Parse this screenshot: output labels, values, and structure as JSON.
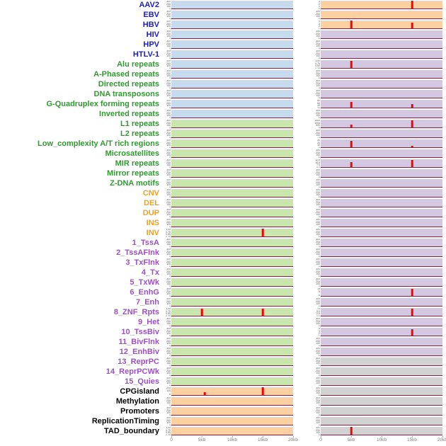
{
  "colors": {
    "label_virus": "#1a1ace",
    "label_repeat": "#2e9b2e",
    "label_sv": "#f0a122",
    "label_chromatin": "#9e4fc8",
    "label_other": "#000000",
    "bg_lightblue": "#c6dcee",
    "bg_lightgreen": "#c9e6ad",
    "bg_orange": "#fdd0a2",
    "bg_lavender": "#d4c7e2",
    "bg_gray": "#d2d2d2",
    "spike": "#ff0000",
    "baseline": "#6b2f3f",
    "axis_text": "#808080",
    "ytick_text": "#555555"
  },
  "chart_data": {
    "type": "bar",
    "subtype": "genomic-signal-tracks",
    "title": "",
    "x_axis": {
      "tick_labels": [
        "0",
        "5kb",
        "10kb",
        "15kb",
        "20kb"
      ],
      "positions_kb": [
        0,
        5,
        10,
        15,
        20
      ],
      "range_kb": [
        0,
        20
      ]
    },
    "default_yticks": [
      "300",
      "200",
      "100",
      "0"
    ],
    "rows": [
      {
        "label": "AAV2",
        "group": "virus",
        "left": {
          "bg": "lightblue",
          "spikes": []
        },
        "right": {
          "bg": "orange",
          "yticks": [
            "3",
            "2",
            "1",
            "0"
          ],
          "spikes": [
            {
              "x_kb": 15,
              "pct": 95
            }
          ]
        }
      },
      {
        "label": "EBV",
        "group": "virus",
        "left": {
          "bg": "lightblue",
          "spikes": []
        },
        "right": {
          "bg": "orange",
          "spikes": []
        }
      },
      {
        "label": "HBV",
        "group": "virus",
        "left": {
          "bg": "lightblue",
          "spikes": []
        },
        "right": {
          "bg": "orange",
          "yticks": [
            "4",
            "3",
            "2",
            "1",
            "0"
          ],
          "spikes": [
            {
              "x_kb": 5,
              "pct": 90
            },
            {
              "x_kb": 15,
              "pct": 70
            }
          ]
        }
      },
      {
        "label": "HIV",
        "group": "virus",
        "left": {
          "bg": "lightblue",
          "spikes": []
        },
        "right": {
          "bg": "lavender",
          "spikes": []
        }
      },
      {
        "label": "HPV",
        "group": "virus",
        "left": {
          "bg": "lightblue",
          "spikes": []
        },
        "right": {
          "bg": "lavender",
          "spikes": []
        }
      },
      {
        "label": "HTLV-1",
        "group": "virus",
        "left": {
          "bg": "lightblue",
          "spikes": []
        },
        "right": {
          "bg": "lavender",
          "spikes": []
        }
      },
      {
        "label": "Alu repeats",
        "group": "repeat",
        "left": {
          "bg": "lightblue",
          "spikes": []
        },
        "right": {
          "bg": "lavender",
          "yticks": [
            "1.00",
            "0.75",
            "0.50",
            "0.25",
            "0.00"
          ],
          "spikes": [
            {
              "x_kb": 5,
              "pct": 80
            }
          ]
        }
      },
      {
        "label": "A-Phased repeats",
        "group": "repeat",
        "left": {
          "bg": "lightblue",
          "spikes": []
        },
        "right": {
          "bg": "lavender",
          "spikes": []
        }
      },
      {
        "label": "Directed repeats",
        "group": "repeat",
        "left": {
          "bg": "lightblue",
          "spikes": []
        },
        "right": {
          "bg": "lavender",
          "spikes": []
        }
      },
      {
        "label": "DNA transposons",
        "group": "repeat",
        "left": {
          "bg": "lightblue",
          "spikes": []
        },
        "right": {
          "bg": "lavender",
          "spikes": []
        }
      },
      {
        "label": "G-Quadruplex forming repeats",
        "group": "repeat",
        "left": {
          "bg": "lightblue",
          "spikes": []
        },
        "right": {
          "bg": "lavender",
          "yticks": [
            "80",
            "60",
            "40",
            "20",
            "0"
          ],
          "spikes": [
            {
              "x_kb": 5,
              "pct": 70
            },
            {
              "x_kb": 15,
              "pct": 45
            }
          ]
        }
      },
      {
        "label": "Inverted repeats",
        "group": "repeat",
        "left": {
          "bg": "lightblue",
          "spikes": []
        },
        "right": {
          "bg": "lavender",
          "spikes": []
        }
      },
      {
        "label": "L1 repeats",
        "group": "repeat",
        "left": {
          "bg": "lightgreen",
          "spikes": []
        },
        "right": {
          "bg": "lavender",
          "yticks": [
            "1500",
            "1000",
            "500",
            "0"
          ],
          "spikes": [
            {
              "x_kb": 5,
              "pct": 30
            },
            {
              "x_kb": 15,
              "pct": 85
            }
          ]
        }
      },
      {
        "label": "L2 repeats",
        "group": "repeat",
        "left": {
          "bg": "lightgreen",
          "spikes": []
        },
        "right": {
          "bg": "lavender",
          "spikes": []
        }
      },
      {
        "label": "Low_complexity A/T rich regions",
        "group": "repeat",
        "left": {
          "bg": "lightgreen",
          "spikes": []
        },
        "right": {
          "bg": "lavender",
          "yticks": [
            "30",
            "20",
            "10",
            "0"
          ],
          "spikes": [
            {
              "x_kb": 5,
              "pct": 75
            },
            {
              "x_kb": 15,
              "pct": 20
            }
          ]
        }
      },
      {
        "label": "Microsatellites",
        "group": "repeat",
        "left": {
          "bg": "lightgreen",
          "spikes": []
        },
        "right": {
          "bg": "lavender",
          "spikes": []
        }
      },
      {
        "label": "MIR repeats",
        "group": "repeat",
        "left": {
          "bg": "lightgreen",
          "spikes": []
        },
        "right": {
          "bg": "lavender",
          "yticks": [
            "12.5",
            "10.0",
            "7.5",
            "5.0",
            "2.5",
            "0.0"
          ],
          "spikes": [
            {
              "x_kb": 5,
              "pct": 55
            },
            {
              "x_kb": 15,
              "pct": 85
            }
          ]
        }
      },
      {
        "label": "Mirror repeats",
        "group": "repeat",
        "left": {
          "bg": "lightgreen",
          "spikes": []
        },
        "right": {
          "bg": "lavender",
          "spikes": []
        }
      },
      {
        "label": "Z-DNA motifs",
        "group": "repeat",
        "left": {
          "bg": "lightgreen",
          "spikes": []
        },
        "right": {
          "bg": "lavender",
          "spikes": []
        }
      },
      {
        "label": "CNV",
        "group": "sv",
        "left": {
          "bg": "lightgreen",
          "spikes": []
        },
        "right": {
          "bg": "lavender",
          "spikes": []
        }
      },
      {
        "label": "DEL",
        "group": "sv",
        "left": {
          "bg": "lightgreen",
          "spikes": []
        },
        "right": {
          "bg": "lavender",
          "spikes": []
        }
      },
      {
        "label": "DUP",
        "group": "sv",
        "left": {
          "bg": "lightgreen",
          "spikes": []
        },
        "right": {
          "bg": "lavender",
          "spikes": []
        }
      },
      {
        "label": "INS",
        "group": "sv",
        "left": {
          "bg": "lightgreen",
          "spikes": []
        },
        "right": {
          "bg": "lavender",
          "spikes": []
        }
      },
      {
        "label": "INV",
        "group": "sv",
        "left": {
          "bg": "lightgreen",
          "yticks": [
            "1.00",
            "0.75",
            "0.50",
            "0.25",
            "0.00"
          ],
          "spikes": [
            {
              "x_kb": 15,
              "pct": 90
            }
          ]
        },
        "right": {
          "bg": "lavender",
          "spikes": []
        }
      },
      {
        "label": "1_TssA",
        "group": "chromatin",
        "left": {
          "bg": "lightgreen",
          "spikes": []
        },
        "right": {
          "bg": "lavender",
          "spikes": []
        }
      },
      {
        "label": "2_TssAFlnk",
        "group": "chromatin",
        "left": {
          "bg": "lightgreen",
          "spikes": []
        },
        "right": {
          "bg": "lavender",
          "spikes": []
        }
      },
      {
        "label": "3_TxFlnk",
        "group": "chromatin",
        "left": {
          "bg": "lightgreen",
          "spikes": []
        },
        "right": {
          "bg": "lavender",
          "spikes": []
        }
      },
      {
        "label": "4_Tx",
        "group": "chromatin",
        "left": {
          "bg": "lightgreen",
          "spikes": []
        },
        "right": {
          "bg": "lavender",
          "spikes": []
        }
      },
      {
        "label": "5_TxWk",
        "group": "chromatin",
        "left": {
          "bg": "lightgreen",
          "spikes": []
        },
        "right": {
          "bg": "lavender",
          "spikes": []
        }
      },
      {
        "label": "6_EnhG",
        "group": "chromatin",
        "left": {
          "bg": "lightgreen",
          "spikes": []
        },
        "right": {
          "bg": "lavender",
          "yticks": [
            "10",
            "5",
            "0"
          ],
          "spikes": [
            {
              "x_kb": 15,
              "pct": 85
            }
          ]
        }
      },
      {
        "label": "7_Enh",
        "group": "chromatin",
        "left": {
          "bg": "lightgreen",
          "spikes": []
        },
        "right": {
          "bg": "lavender",
          "spikes": []
        }
      },
      {
        "label": "8_ZNF_Rpts",
        "group": "chromatin",
        "left": {
          "bg": "lightgreen",
          "yticks": [
            "1.00",
            "0.75",
            "0.50",
            "0.25",
            "0.00"
          ],
          "spikes": [
            {
              "x_kb": 5,
              "pct": 85
            },
            {
              "x_kb": 15,
              "pct": 85
            }
          ]
        },
        "right": {
          "bg": "lavender",
          "yticks": [
            "7.5",
            "5.0",
            "2.5",
            "0.0"
          ],
          "spikes": [
            {
              "x_kb": 15,
              "pct": 85
            }
          ]
        }
      },
      {
        "label": "9_Het",
        "group": "chromatin",
        "left": {
          "bg": "lightgreen",
          "spikes": []
        },
        "right": {
          "bg": "lavender",
          "spikes": []
        }
      },
      {
        "label": "10_TssBiv",
        "group": "chromatin",
        "left": {
          "bg": "lightgreen",
          "spikes": []
        },
        "right": {
          "bg": "lavender",
          "yticks": [
            "4",
            "3",
            "2",
            "1",
            "0"
          ],
          "spikes": [
            {
              "x_kb": 15,
              "pct": 75
            }
          ]
        }
      },
      {
        "label": "11_BivFlnk",
        "group": "chromatin",
        "left": {
          "bg": "lightgreen",
          "spikes": []
        },
        "right": {
          "bg": "lavender",
          "spikes": []
        }
      },
      {
        "label": "12_EnhBiv",
        "group": "chromatin",
        "left": {
          "bg": "lightgreen",
          "spikes": []
        },
        "right": {
          "bg": "lavender",
          "spikes": []
        }
      },
      {
        "label": "13_ReprPC",
        "group": "chromatin",
        "left": {
          "bg": "lightgreen",
          "spikes": []
        },
        "right": {
          "bg": "gray",
          "spikes": []
        }
      },
      {
        "label": "14_ReprPCWk",
        "group": "chromatin",
        "left": {
          "bg": "lightgreen",
          "spikes": []
        },
        "right": {
          "bg": "gray",
          "spikes": []
        }
      },
      {
        "label": "15_Quies",
        "group": "chromatin",
        "left": {
          "bg": "lightgreen",
          "spikes": []
        },
        "right": {
          "bg": "gray",
          "spikes": []
        }
      },
      {
        "label": "CPGisland",
        "group": "other",
        "left": {
          "bg": "orange",
          "yticks": [
            "200",
            "100",
            "0"
          ],
          "spikes": [
            {
              "x_kb": 5.5,
              "pct": 30
            },
            {
              "x_kb": 15,
              "pct": 90
            }
          ]
        },
        "right": {
          "bg": "gray",
          "spikes": []
        }
      },
      {
        "label": "Methylation",
        "group": "other",
        "left": {
          "bg": "orange",
          "spikes": []
        },
        "right": {
          "bg": "gray",
          "spikes": []
        }
      },
      {
        "label": "Promoters",
        "group": "other",
        "left": {
          "bg": "orange",
          "spikes": []
        },
        "right": {
          "bg": "gray",
          "spikes": []
        }
      },
      {
        "label": "ReplicationTiming",
        "group": "other",
        "left": {
          "bg": "orange",
          "spikes": []
        },
        "right": {
          "bg": "gray",
          "spikes": []
        }
      },
      {
        "label": "TAD_boundary",
        "group": "other",
        "left": {
          "bg": "orange",
          "yticks": [
            "1.00",
            "0.75",
            "0.50",
            "0.25",
            "0.00"
          ],
          "spikes": []
        },
        "right": {
          "bg": "gray",
          "spikes": [
            {
              "x_kb": 5,
              "pct": 90
            }
          ]
        }
      }
    ]
  }
}
